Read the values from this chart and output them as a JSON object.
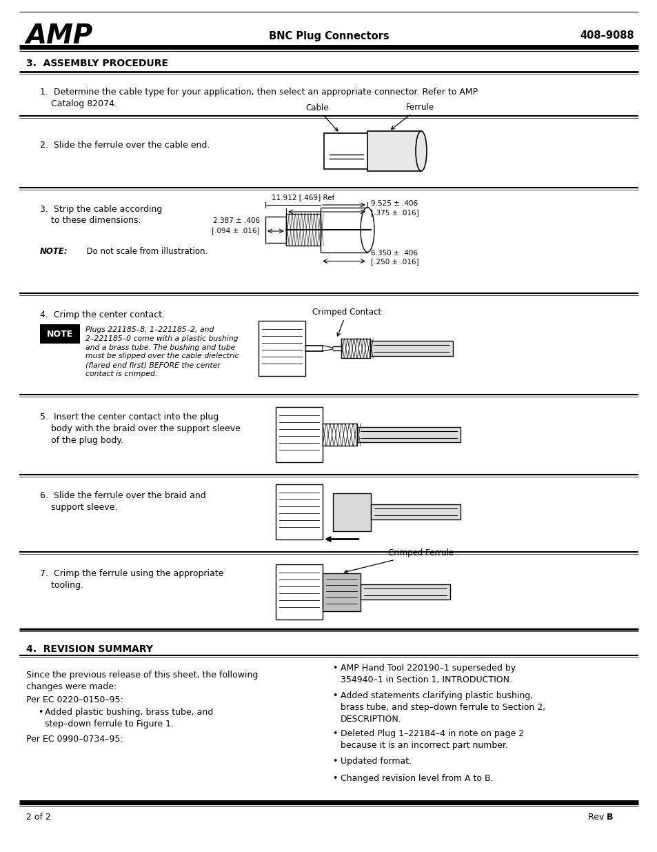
{
  "page_bg": "#ffffff",
  "amp_logo_text": "AMP",
  "header_center": "BNC Plug Connectors",
  "header_right": "408–9088",
  "footer_left": "2 of 2",
  "section3_title": "3.  ASSEMBLY PROCEDURE",
  "step1_text": "1.  Determine the cable type for your application, then select an appropriate connector. Refer to AMP\n    Catalog 82074.",
  "step2_text": "2.  Slide the ferrule over the cable end.",
  "step3_text_a": "3.  Strip the cable according",
  "step3_text_b": "    to these dimensions:",
  "step3_note_bold": "NOTE:",
  "step3_note_rest": "  Do not scale from illustration.",
  "step4_text": "4.  Crimp the center contact.",
  "note_label": "NOTE",
  "note_text": "Plugs 221185–8, 1–221185–2, and\n2–221185–0 come with a plastic bushing\nand a brass tube. The bushing and tube\nmust be slipped over the cable dielectric\n(flared end first) BEFORE the center\ncontact is crimped.",
  "step5_text": "5.  Insert the center contact into the plug\n    body with the braid over the support sleeve\n    of the plug body.",
  "step6_text": "6.  Slide the ferrule over the braid and\n    support sleeve.",
  "step7_text": "7.  Crimp the ferrule using the appropriate\n    tooling.",
  "section4_title": "4.  REVISION SUMMARY",
  "section4_intro": "Since the previous release of this sheet, the following\nchanges were made:",
  "ec1_label": "Per EC 0220–0150–95:",
  "ec1_bullets": [
    "Added plastic bushing, brass tube, and\nstep–down ferrule to Figure 1."
  ],
  "ec2_label": "Per EC 0990–0734–95:",
  "right_bullets": [
    "AMP Hand Tool 220190–1 superseded by\n354940–1 in Section 1, INTRODUCTION.",
    "Added statements clarifying plastic bushing,\nbrass tube, and step–down ferrule to Section 2,\nDESCRIPTION.",
    "Deleted Plug 1–22184–4 in note on page 2\nbecause it is an incorrect part number.",
    "Updated format.",
    "Changed revision level from A to B."
  ],
  "dim1_ref": "11.912 [.469] Ref",
  "dim2a": "2.387 ± .406",
  "dim2b": "[.094 ± .016]",
  "dim3a": "9.525 ± .406",
  "dim3b": "[.375 ± .016]",
  "dim4a": "6.350 ± .406",
  "dim4b": "[.250 ± .016]",
  "label_cable": "Cable",
  "label_ferrule": "Ferrule",
  "label_crimped_contact": "Crimped Contact",
  "label_crimped_ferrule": "Crimped Ferrule"
}
